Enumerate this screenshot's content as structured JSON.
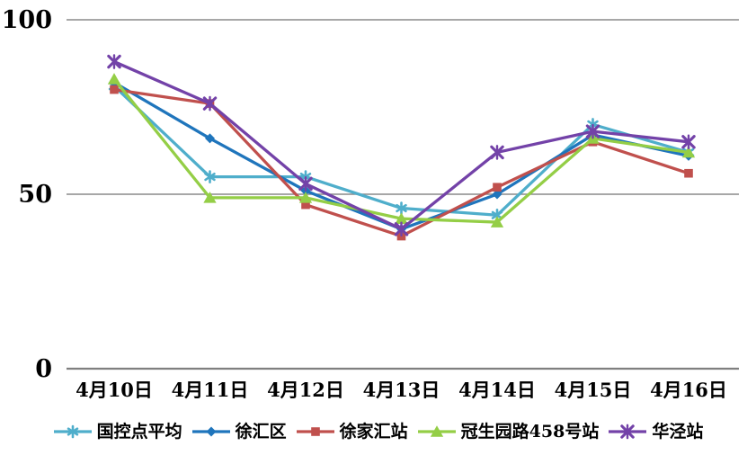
{
  "chart_data": {
    "type": "line",
    "title": "",
    "categories": [
      "4月10日",
      "4月11日",
      "4月12日",
      "4月13日",
      "4月14日",
      "4月15日",
      "4月16日"
    ],
    "series": [
      {
        "name": "国控点平均",
        "color": "#4FAECB",
        "marker": "asterisk",
        "values": [
          81,
          55,
          55,
          46,
          44,
          70,
          62
        ]
      },
      {
        "name": "徐汇区",
        "color": "#1F75BC",
        "marker": "diamond",
        "values": [
          82,
          66,
          51,
          40,
          50,
          67,
          61
        ]
      },
      {
        "name": "徐家汇站",
        "color": "#C0504D",
        "marker": "square",
        "values": [
          80,
          76,
          47,
          38,
          52,
          65,
          56
        ]
      },
      {
        "name": "冠生园路458号站",
        "color": "#94CE46",
        "marker": "triangle",
        "values": [
          83,
          49,
          49,
          43,
          42,
          66,
          62
        ]
      },
      {
        "name": "华泾站",
        "color": "#7342A8",
        "marker": "x",
        "values": [
          88,
          76,
          53,
          40,
          62,
          68,
          65
        ]
      }
    ],
    "ylim": [
      0,
      100
    ],
    "yticks": [
      100,
      50,
      0
    ],
    "ytick_labels": [
      "100",
      "50",
      "0"
    ],
    "grid": true,
    "gridline_color": "#8a8a8a",
    "axis_color": "#7f7f7f",
    "legend_position": "bottom"
  }
}
